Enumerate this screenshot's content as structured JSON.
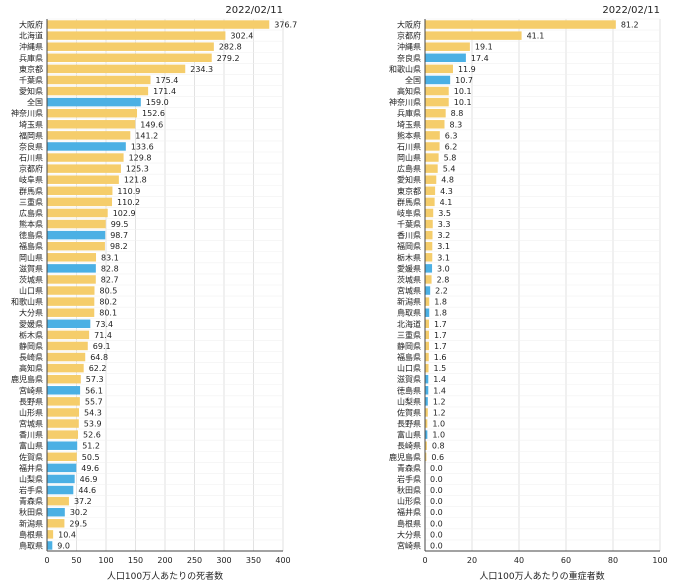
{
  "colors": {
    "default_bar": "#f5cd6b",
    "highlight_bar": "#4bb0e4",
    "grid": "#e2e2e2",
    "axis": "#444444"
  },
  "chart_data": [
    {
      "type": "bar",
      "orientation": "horizontal",
      "date_label": "2022/02/11",
      "xlabel": "人口100万人あたりの死者数",
      "xlim": [
        0,
        400
      ],
      "xticks": [
        0,
        50,
        100,
        150,
        200,
        250,
        300,
        350,
        400
      ],
      "highlighted": [
        "全国",
        "奈良県",
        "徳島県",
        "滋賀県",
        "愛媛県",
        "宮崎県",
        "富山県",
        "福井県",
        "山梨県",
        "岩手県",
        "秋田県",
        "鳥取県"
      ],
      "categories": [
        "大阪府",
        "北海道",
        "沖縄県",
        "兵庫県",
        "東京都",
        "千葉県",
        "愛知県",
        "全国",
        "神奈川県",
        "埼玉県",
        "福岡県",
        "奈良県",
        "石川県",
        "京都府",
        "岐阜県",
        "群馬県",
        "三重県",
        "広島県",
        "熊本県",
        "徳島県",
        "福島県",
        "岡山県",
        "滋賀県",
        "茨城県",
        "山口県",
        "和歌山県",
        "大分県",
        "愛媛県",
        "栃木県",
        "静岡県",
        "長崎県",
        "高知県",
        "鹿児島県",
        "宮崎県",
        "長野県",
        "山形県",
        "宮城県",
        "香川県",
        "富山県",
        "佐賀県",
        "福井県",
        "山梨県",
        "岩手県",
        "青森県",
        "秋田県",
        "新潟県",
        "島根県",
        "鳥取県"
      ],
      "values": [
        376.7,
        302.4,
        282.8,
        279.2,
        234.3,
        175.4,
        171.4,
        159.0,
        152.6,
        149.6,
        141.2,
        133.6,
        129.8,
        125.3,
        121.8,
        110.9,
        110.2,
        102.9,
        99.5,
        98.7,
        98.2,
        83.1,
        82.8,
        82.7,
        80.5,
        80.2,
        80.1,
        73.4,
        71.4,
        69.1,
        64.8,
        62.2,
        57.3,
        56.1,
        55.7,
        54.3,
        53.9,
        52.6,
        51.2,
        50.5,
        49.6,
        46.9,
        44.6,
        37.2,
        30.2,
        29.5,
        10.4,
        9.0
      ],
      "value_labels": [
        "376.7",
        "302.4",
        "282.8",
        "279.2",
        "234.3",
        "175.4",
        "171.4",
        "159.0",
        "152.6",
        "149.6",
        "141.2",
        "133.6",
        "129.8",
        "125.3",
        "121.8",
        "110.9",
        "110.2",
        "102.9",
        "99.5",
        "98.7",
        "98.2",
        "83.1",
        "82.8",
        "82.7",
        "80.5",
        "80.2",
        "80.1",
        "73.4",
        "71.4",
        "69.1",
        "64.8",
        "62.2",
        "57.3",
        "56.1",
        "55.7",
        "54.3",
        "53.9",
        "52.6",
        "51.2",
        "50.5",
        "49.6",
        "46.9",
        "44.6",
        "37.2",
        "30.2",
        "29.5",
        "10.4",
        "9.0"
      ]
    },
    {
      "type": "bar",
      "orientation": "horizontal",
      "date_label": "2022/02/11",
      "xlabel": "人口100万人あたりの重症者数",
      "xlim": [
        0,
        100
      ],
      "xticks": [
        0,
        20,
        40,
        60,
        80,
        100
      ],
      "highlighted": [
        "全国",
        "奈良県",
        "愛媛県",
        "宮城県",
        "鳥取県",
        "滋賀県",
        "徳島県",
        "山梨県",
        "富山県"
      ],
      "categories": [
        "大阪府",
        "京都府",
        "沖縄県",
        "奈良県",
        "和歌山県",
        "全国",
        "高知県",
        "神奈川県",
        "兵庫県",
        "埼玉県",
        "熊本県",
        "石川県",
        "岡山県",
        "広島県",
        "愛知県",
        "東京都",
        "群馬県",
        "岐阜県",
        "千葉県",
        "香川県",
        "福岡県",
        "栃木県",
        "愛媛県",
        "茨城県",
        "宮城県",
        "新潟県",
        "鳥取県",
        "北海道",
        "三重県",
        "静岡県",
        "福島県",
        "山口県",
        "滋賀県",
        "徳島県",
        "山梨県",
        "佐賀県",
        "長野県",
        "富山県",
        "長崎県",
        "鹿児島県",
        "青森県",
        "岩手県",
        "秋田県",
        "山形県",
        "福井県",
        "島根県",
        "大分県",
        "宮崎県"
      ],
      "values": [
        81.2,
        41.1,
        19.1,
        17.4,
        11.9,
        10.7,
        10.1,
        10.1,
        8.8,
        8.3,
        6.3,
        6.2,
        5.8,
        5.4,
        4.8,
        4.3,
        4.1,
        3.5,
        3.3,
        3.2,
        3.1,
        3.1,
        3.0,
        2.8,
        2.2,
        1.8,
        1.8,
        1.7,
        1.7,
        1.7,
        1.6,
        1.5,
        1.4,
        1.4,
        1.2,
        1.2,
        1.0,
        1.0,
        0.8,
        0.6,
        0.0,
        0.0,
        0.0,
        0.0,
        0.0,
        0.0,
        0.0,
        0.0
      ],
      "value_labels": [
        "81.2",
        "41.1",
        "19.1",
        "17.4",
        "11.9",
        "10.7",
        "10.1",
        "10.1",
        "8.8",
        "8.3",
        "6.3",
        "6.2",
        "5.8",
        "5.4",
        "4.8",
        "4.3",
        "4.1",
        "3.5",
        "3.3",
        "3.2",
        "3.1",
        "3.1",
        "3.0",
        "2.8",
        "2.2",
        "1.8",
        "1.8",
        "1.7",
        "1.7",
        "1.7",
        "1.6",
        "1.5",
        "1.4",
        "1.4",
        "1.2",
        "1.2",
        "1.0",
        "1.0",
        "0.8",
        "0.6",
        "0.0",
        "0.0",
        "0.0",
        "0.0",
        "0.0",
        "0.0",
        "0.0",
        "0.0"
      ]
    }
  ]
}
